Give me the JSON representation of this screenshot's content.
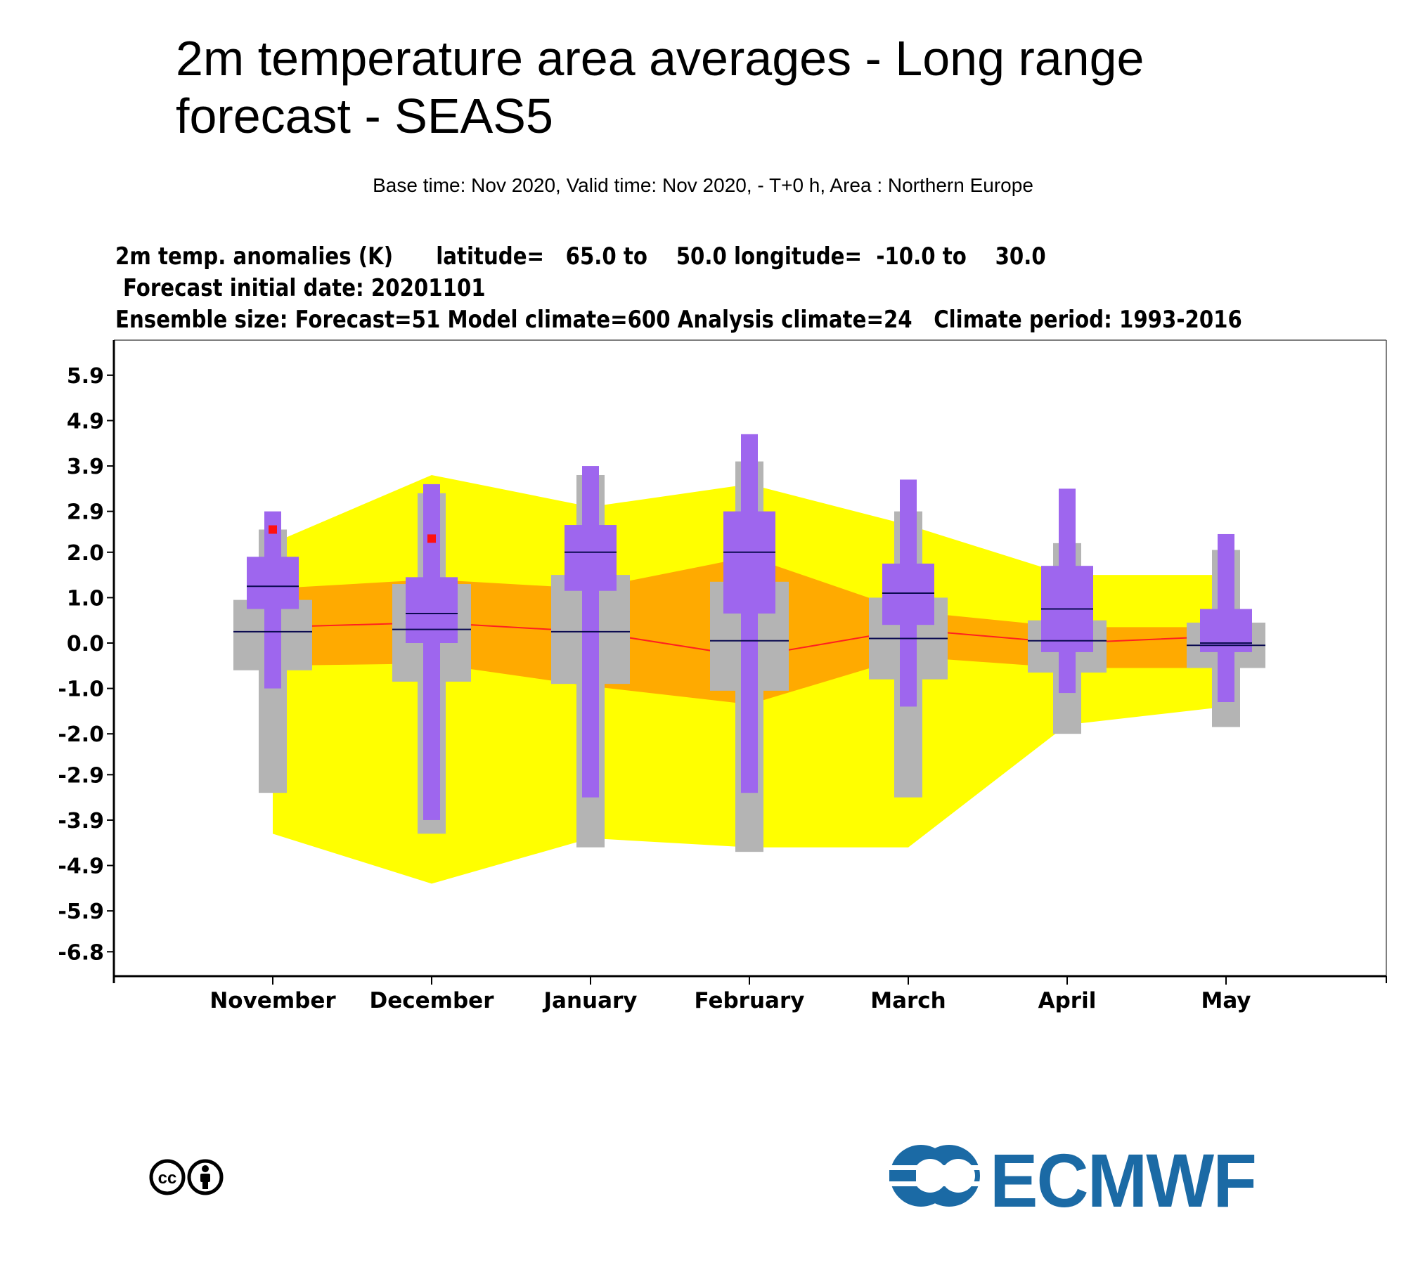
{
  "title": "2m temperature area averages - Long range forecast - SEAS5",
  "subtitle": "Base time: Nov 2020, Valid time: Nov 2020, - T+0 h, Area : Northern Europe",
  "header": {
    "line1": "2m temp. anomalies (K)      latitude=   65.0 to    50.0 longitude=  -10.0 to    30.0",
    "line2": "Forecast initial date: 20201101",
    "line3": "Ensemble size: Forecast=51 Model climate=600 Analysis climate=24   Climate period: 1993-2016"
  },
  "logo": {
    "text": "ECMWF",
    "color": "#1b6aa5"
  },
  "license_icons": [
    "cc-icon",
    "attribution-person-icon"
  ],
  "chart_data": {
    "type": "box",
    "categories": [
      "November",
      "December",
      "January",
      "February",
      "March",
      "April",
      "May"
    ],
    "y_ticks": [
      5.9,
      4.9,
      3.9,
      2.9,
      2.0,
      1.0,
      0.0,
      -1.0,
      -2.0,
      -2.9,
      -3.9,
      -4.9,
      -5.9,
      -6.8
    ],
    "y_tick_labels": [
      "5.9",
      "4.9",
      "3.9",
      "2.9",
      "2.0",
      "1.0",
      "0.0",
      "-1.0",
      "-2.0",
      "-2.9",
      "-3.9",
      "-4.9",
      "-5.9",
      "-6.8"
    ],
    "ylim": [
      -7.0,
      6.6
    ],
    "colors": {
      "analysis_outer": "#ffff00",
      "analysis_inner": "#ffaa00",
      "analysis_median": "#ff2020",
      "model_climate": "#b4b4b4",
      "forecast": "#9e66ee",
      "median_line": "#0a0a50",
      "observed_marker": "#ff1010"
    },
    "analysis_climate_band": {
      "outer_upper": [
        2.2,
        3.7,
        3.0,
        3.5,
        2.6,
        1.5,
        1.5
      ],
      "outer_lower": [
        -4.2,
        -5.3,
        -4.3,
        -4.5,
        -4.5,
        -1.8,
        -1.4
      ],
      "inner_upper": [
        1.2,
        1.4,
        1.2,
        1.9,
        0.7,
        0.35,
        0.35
      ],
      "inner_lower": [
        -0.5,
        -0.45,
        -0.95,
        -1.35,
        -0.3,
        -0.55,
        -0.55
      ],
      "median": [
        0.35,
        0.45,
        0.25,
        -0.3,
        0.3,
        0.0,
        0.15
      ]
    },
    "model_climate": {
      "min": [
        -3.3,
        -4.2,
        -4.5,
        -4.6,
        -3.4,
        -2.0,
        -1.85
      ],
      "p25": [
        -0.6,
        -0.85,
        -0.9,
        -1.05,
        -0.8,
        -0.65,
        -0.55
      ],
      "median": [
        0.25,
        0.3,
        0.25,
        0.05,
        0.1,
        0.05,
        -0.05
      ],
      "p75": [
        0.95,
        1.3,
        1.5,
        1.35,
        1.0,
        0.5,
        0.45
      ],
      "max": [
        2.5,
        3.3,
        3.7,
        4.0,
        2.9,
        2.2,
        2.05
      ]
    },
    "forecast": {
      "min": [
        -1.0,
        -3.9,
        -3.4,
        -3.3,
        -1.4,
        -1.1,
        -1.3
      ],
      "p25": [
        0.75,
        0.0,
        1.15,
        0.65,
        0.4,
        -0.2,
        -0.2
      ],
      "median": [
        1.25,
        0.65,
        2.0,
        2.0,
        1.1,
        0.75,
        0.0
      ],
      "p75": [
        1.9,
        1.45,
        2.6,
        2.9,
        1.75,
        1.7,
        0.75
      ],
      "max": [
        2.9,
        3.5,
        3.9,
        4.6,
        3.6,
        3.4,
        2.4
      ]
    },
    "observed": [
      2.5,
      2.3,
      null,
      null,
      null,
      null,
      null
    ]
  }
}
